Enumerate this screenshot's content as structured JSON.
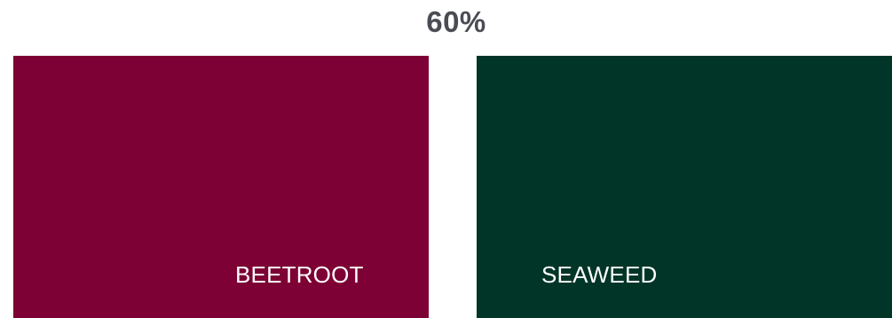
{
  "heading": {
    "percentage": "60%"
  },
  "swatches": [
    {
      "label": "BEETROOT",
      "color": "#7d0134"
    },
    {
      "label": "SEAWEED",
      "color": "#003528"
    }
  ],
  "colors": {
    "heading_text": "#4a4c53",
    "label_text": "#ffffff",
    "background": "#ffffff"
  }
}
